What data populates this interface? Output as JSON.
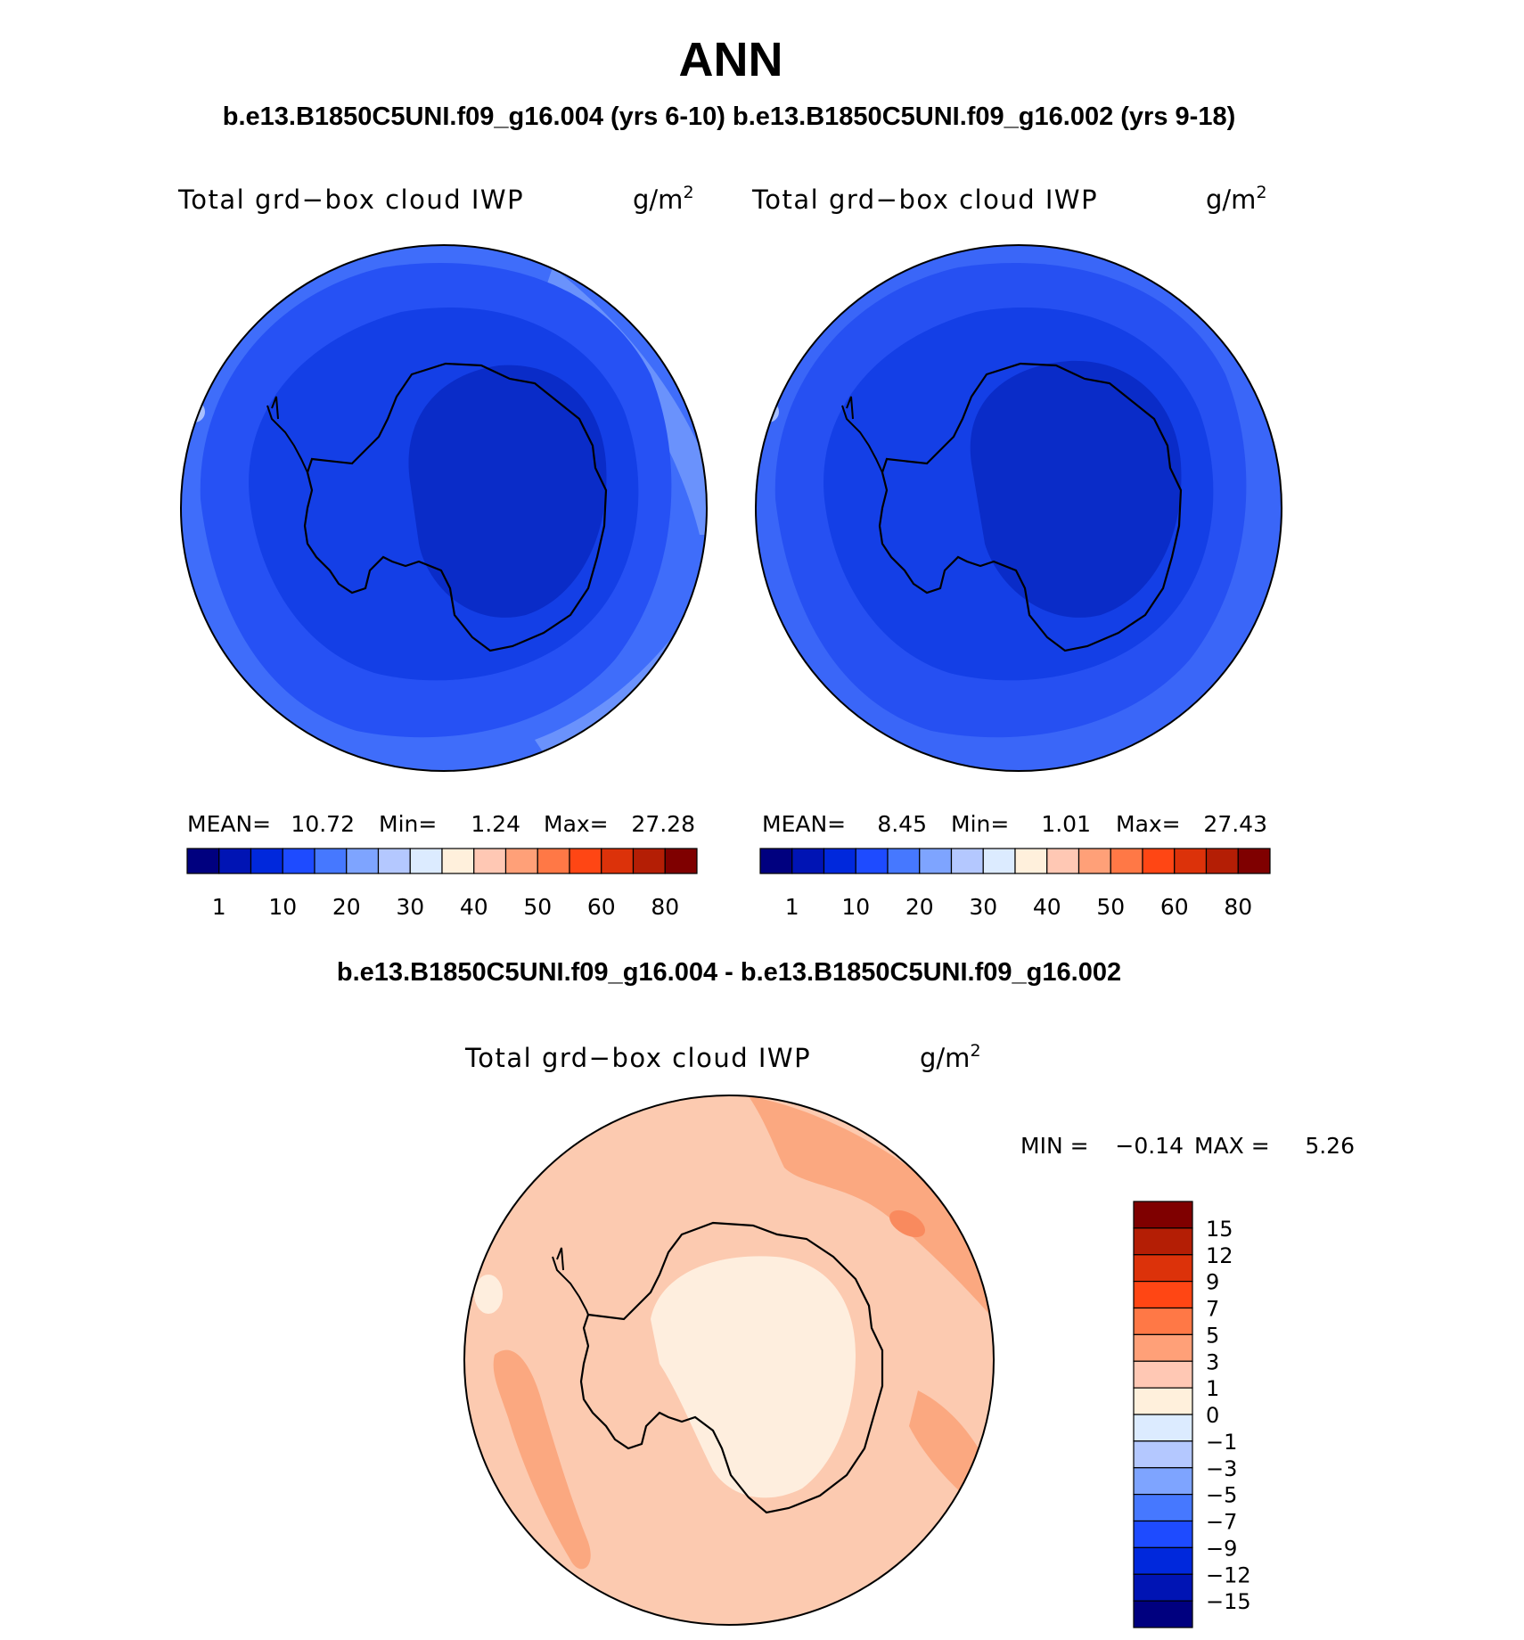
{
  "figure": {
    "season": "ANN",
    "subtitle_top": "b.e13.B1850C5UNI.f09_g16.004 (yrs 6-10) b.e13.B1850C5UNI.f09_g16.002 (yrs 9-18)",
    "subtitle_diff": "b.e13.B1850C5UNI.f09_g16.004 - b.e13.B1850C5UNI.f09_g16.002"
  },
  "panels": [
    {
      "id": "case-004",
      "field_label": "Total grd−box cloud IWP",
      "units_base": "g/m",
      "units_exp": "2",
      "stats": {
        "mean_label": "MEAN=",
        "mean_value": "10.72",
        "min_label": "Min=",
        "min_value": "1.24",
        "max_label": "Max=",
        "max_value": "27.28"
      }
    },
    {
      "id": "case-002",
      "field_label": "Total grd−box cloud IWP",
      "units_base": "g/m",
      "units_exp": "2",
      "stats": {
        "mean_label": "MEAN=",
        "mean_value": "8.45",
        "min_label": "Min=",
        "min_value": "1.01",
        "max_label": "Max=",
        "max_value": "27.43"
      }
    }
  ],
  "diff_panel": {
    "field_label": "Total grd−box cloud IWP",
    "units_base": "g/m",
    "units_exp": "2",
    "minmax": {
      "min_label": "MIN =",
      "min_value": "−0.14",
      "max_label": "MAX =",
      "max_value": "5.26"
    }
  },
  "chart_data": [
    {
      "type": "heatmap",
      "projection": "south-polar-stereographic",
      "title": "Total grd−box cloud IWP",
      "units": "g/m2",
      "case": "b.e13.B1850C5UNI.f09_g16.004 (yrs 6-10)",
      "mean": 10.72,
      "min": 1.24,
      "max": 27.28,
      "colorbar": {
        "orientation": "horizontal",
        "levels": [
          1,
          10,
          20,
          30,
          40,
          50,
          60,
          80
        ],
        "tick_labels": [
          "1",
          "10",
          "20",
          "30",
          "40",
          "50",
          "60",
          "80"
        ],
        "colors": [
          "#00007f",
          "#0014b4",
          "#0028dc",
          "#1e4bff",
          "#4678ff",
          "#7ea4ff",
          "#b4c8ff",
          "#dcebff",
          "#fff0dc",
          "#ffc8b4",
          "#ffa078",
          "#ff7846",
          "#ff4614",
          "#dc320a",
          "#b41e05",
          "#7f0000"
        ]
      },
      "regions": [
        {
          "name": "polar-cap",
          "approx_value": 3
        },
        {
          "name": "inner-ring",
          "approx_value": 7
        },
        {
          "name": "middle-ring",
          "approx_value": 12
        },
        {
          "name": "outer-ring",
          "approx_value": 17
        },
        {
          "name": "outer-streaks",
          "approx_value": 24
        }
      ]
    },
    {
      "type": "heatmap",
      "projection": "south-polar-stereographic",
      "title": "Total grd−box cloud IWP",
      "units": "g/m2",
      "case": "b.e13.B1850C5UNI.f09_g16.002 (yrs 9-18)",
      "mean": 8.45,
      "min": 1.01,
      "max": 27.43,
      "colorbar": {
        "orientation": "horizontal",
        "levels": [
          1,
          10,
          20,
          30,
          40,
          50,
          60,
          80
        ],
        "tick_labels": [
          "1",
          "10",
          "20",
          "30",
          "40",
          "50",
          "60",
          "80"
        ],
        "colors": [
          "#00007f",
          "#0014b4",
          "#0028dc",
          "#1e4bff",
          "#4678ff",
          "#7ea4ff",
          "#b4c8ff",
          "#dcebff",
          "#fff0dc",
          "#ffc8b4",
          "#ffa078",
          "#ff7846",
          "#ff4614",
          "#dc320a",
          "#b41e05",
          "#7f0000"
        ]
      },
      "regions": [
        {
          "name": "polar-cap",
          "approx_value": 3
        },
        {
          "name": "inner-ring",
          "approx_value": 7
        },
        {
          "name": "middle-ring",
          "approx_value": 12
        },
        {
          "name": "outer-ring",
          "approx_value": 17
        },
        {
          "name": "outer-streaks",
          "approx_value": 24
        }
      ]
    },
    {
      "type": "heatmap",
      "projection": "south-polar-stereographic",
      "title": "Total grd−box cloud IWP",
      "units": "g/m2",
      "case": "b.e13.B1850C5UNI.f09_g16.004 - b.e13.B1850C5UNI.f09_g16.002",
      "min": -0.14,
      "max": 5.26,
      "colorbar": {
        "orientation": "vertical",
        "levels": [
          15,
          12,
          9,
          7,
          5,
          3,
          1,
          0,
          -1,
          -3,
          -5,
          -7,
          -9,
          -12,
          -15
        ],
        "tick_labels": [
          "15",
          "12",
          "9",
          "7",
          "5",
          "3",
          "1",
          "0",
          "−1",
          "−3",
          "−5",
          "−7",
          "−9",
          "−12",
          "−15"
        ],
        "colors": [
          "#7f0000",
          "#b41e05",
          "#dc320a",
          "#ff4614",
          "#ff7846",
          "#ffa078",
          "#ffc8b4",
          "#fff0dc",
          "#dcebff",
          "#b4c8ff",
          "#7ea4ff",
          "#4678ff",
          "#1e4bff",
          "#0028dc",
          "#0014b4",
          "#00007f"
        ]
      },
      "regions": [
        {
          "name": "polar-cap",
          "approx_value": 0.5
        },
        {
          "name": "ocean-ring",
          "approx_value": 2
        },
        {
          "name": "positive-bands",
          "approx_value": 4
        },
        {
          "name": "local-maximum",
          "approx_value": 6
        }
      ]
    }
  ]
}
